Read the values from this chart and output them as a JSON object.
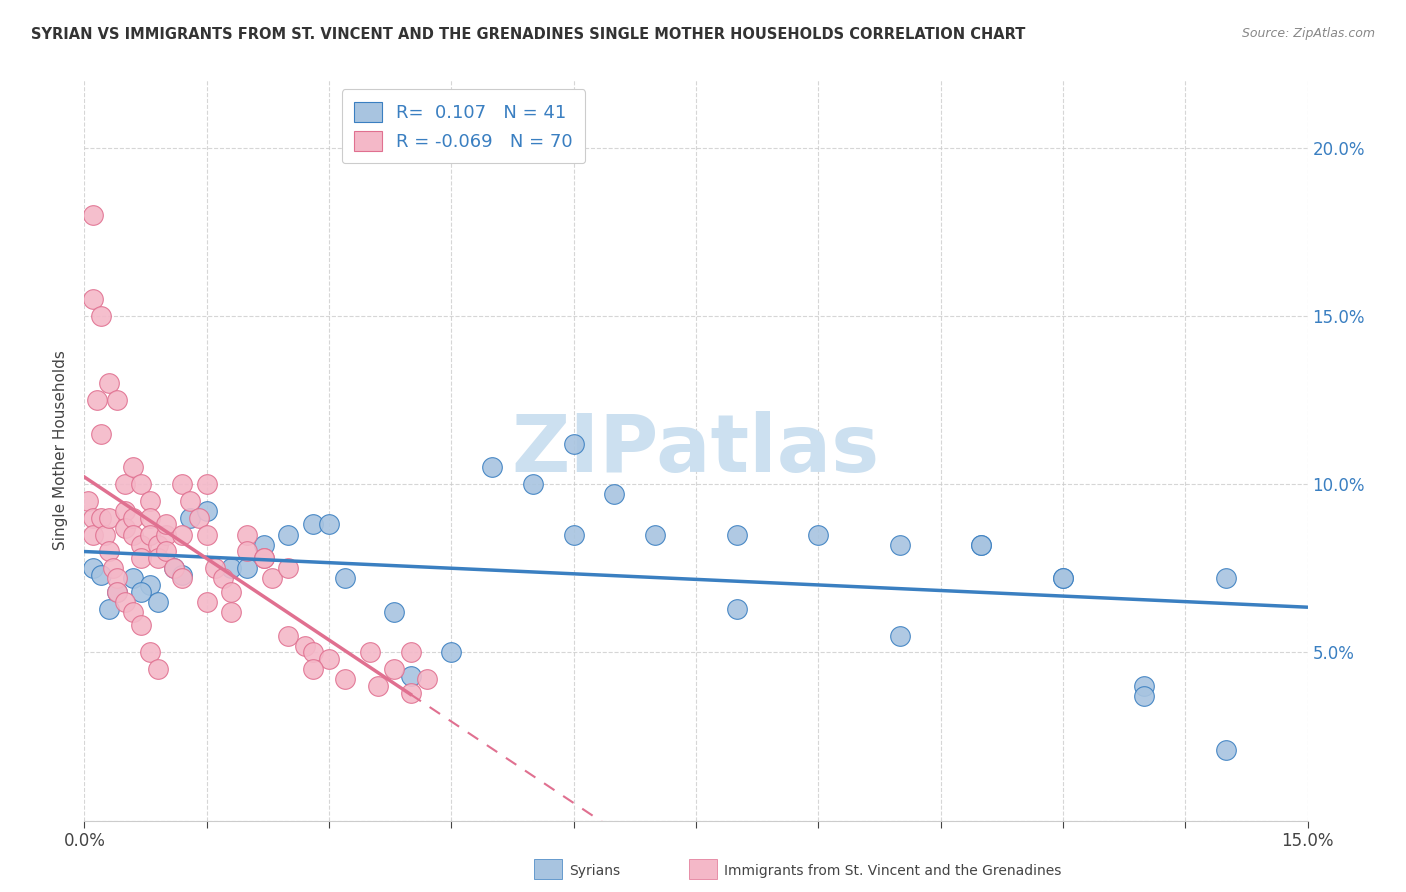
{
  "title": "SYRIAN VS IMMIGRANTS FROM ST. VINCENT AND THE GRENADINES SINGLE MOTHER HOUSEHOLDS CORRELATION CHART",
  "source": "Source: ZipAtlas.com",
  "ylabel": "Single Mother Households",
  "xlim": [
    0.0,
    0.15
  ],
  "ylim": [
    0.0,
    0.22
  ],
  "blue_R": 0.107,
  "blue_N": 41,
  "pink_R": -0.069,
  "pink_N": 70,
  "blue_color": "#a8c4e0",
  "pink_color": "#f4b8c8",
  "blue_line_color": "#3a7fc1",
  "pink_line_color": "#e07090",
  "watermark_color": "#cce0f0",
  "legend_label_blue": "Syrians",
  "legend_label_pink": "Immigrants from St. Vincent and the Grenadines",
  "blue_x": [
    0.001,
    0.002,
    0.004,
    0.006,
    0.008,
    0.009,
    0.011,
    0.013,
    0.015,
    0.018,
    0.022,
    0.025,
    0.028,
    0.032,
    0.038,
    0.045,
    0.05,
    0.055,
    0.06,
    0.065,
    0.07,
    0.08,
    0.09,
    0.1,
    0.11,
    0.12,
    0.13,
    0.14,
    0.003,
    0.007,
    0.012,
    0.02,
    0.03,
    0.04,
    0.06,
    0.08,
    0.1,
    0.12,
    0.13,
    0.14,
    0.11
  ],
  "blue_y": [
    0.075,
    0.073,
    0.068,
    0.072,
    0.07,
    0.065,
    0.075,
    0.09,
    0.092,
    0.075,
    0.082,
    0.085,
    0.088,
    0.072,
    0.062,
    0.05,
    0.105,
    0.1,
    0.112,
    0.097,
    0.085,
    0.085,
    0.085,
    0.055,
    0.082,
    0.072,
    0.04,
    0.021,
    0.063,
    0.068,
    0.073,
    0.075,
    0.088,
    0.043,
    0.085,
    0.063,
    0.082,
    0.072,
    0.037,
    0.072,
    0.082
  ],
  "pink_x": [
    0.0005,
    0.001,
    0.001,
    0.0015,
    0.002,
    0.002,
    0.0025,
    0.003,
    0.003,
    0.0035,
    0.004,
    0.004,
    0.005,
    0.005,
    0.005,
    0.006,
    0.006,
    0.006,
    0.007,
    0.007,
    0.007,
    0.008,
    0.008,
    0.008,
    0.009,
    0.009,
    0.01,
    0.01,
    0.011,
    0.012,
    0.012,
    0.013,
    0.014,
    0.015,
    0.015,
    0.016,
    0.017,
    0.018,
    0.02,
    0.02,
    0.022,
    0.023,
    0.025,
    0.027,
    0.028,
    0.03,
    0.035,
    0.038,
    0.04,
    0.042,
    0.001,
    0.002,
    0.003,
    0.004,
    0.005,
    0.006,
    0.007,
    0.008,
    0.009,
    0.01,
    0.012,
    0.015,
    0.018,
    0.022,
    0.025,
    0.028,
    0.032,
    0.036,
    0.04,
    0.001
  ],
  "pink_y": [
    0.095,
    0.09,
    0.085,
    0.125,
    0.115,
    0.09,
    0.085,
    0.09,
    0.08,
    0.075,
    0.072,
    0.068,
    0.1,
    0.092,
    0.087,
    0.105,
    0.09,
    0.085,
    0.1,
    0.082,
    0.078,
    0.095,
    0.09,
    0.085,
    0.082,
    0.078,
    0.085,
    0.08,
    0.075,
    0.1,
    0.072,
    0.095,
    0.09,
    0.1,
    0.085,
    0.075,
    0.072,
    0.068,
    0.085,
    0.08,
    0.078,
    0.072,
    0.055,
    0.052,
    0.05,
    0.048,
    0.05,
    0.045,
    0.05,
    0.042,
    0.155,
    0.15,
    0.13,
    0.125,
    0.065,
    0.062,
    0.058,
    0.05,
    0.045,
    0.088,
    0.085,
    0.065,
    0.062,
    0.078,
    0.075,
    0.045,
    0.042,
    0.04,
    0.038,
    0.18
  ]
}
